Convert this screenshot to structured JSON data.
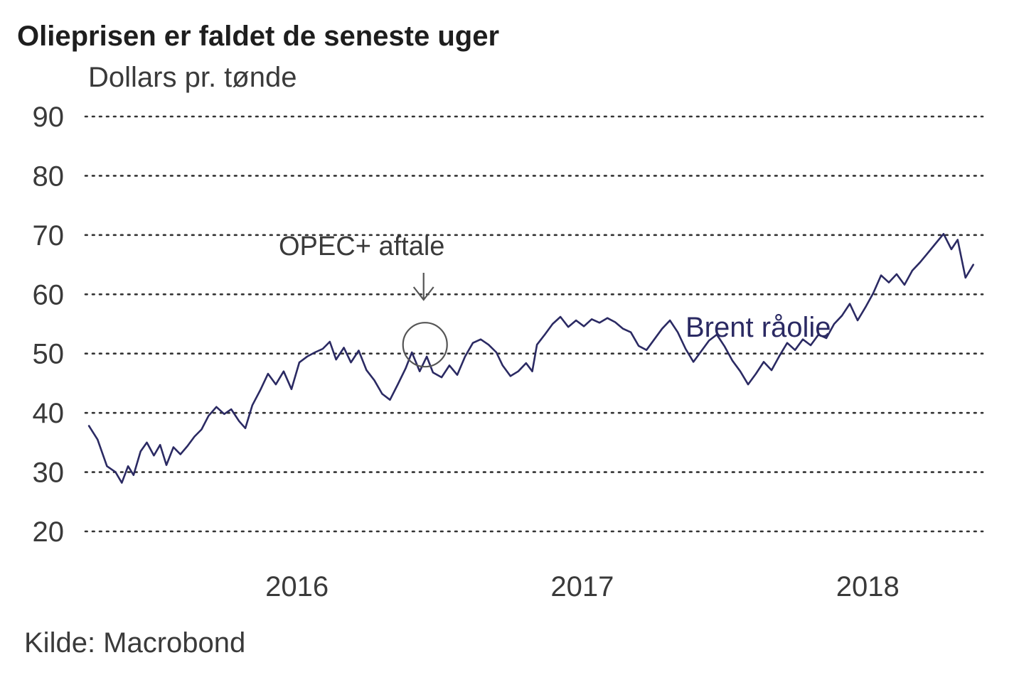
{
  "chart_data": {
    "type": "line",
    "title": "Olieprisen er faldet de seneste uger",
    "ylabel": "Dollars pr. tønde",
    "ylim": [
      20,
      90
    ],
    "yticks": [
      20,
      30,
      40,
      50,
      60,
      70,
      80,
      90
    ],
    "grid": true,
    "xlim": [
      "2015-10-08",
      "2018-11-16"
    ],
    "xticks": [
      {
        "label": "2016",
        "date": "2016-07-01"
      },
      {
        "label": "2017",
        "date": "2017-07-01"
      },
      {
        "label": "2018",
        "date": "2018-07-01"
      }
    ],
    "source": "Kilde: Macrobond",
    "annotations": [
      {
        "text": "OPEC+ aftale",
        "date": "2016-12-10",
        "value": 51.5
      }
    ],
    "series": [
      {
        "name": "Brent råolie",
        "color": "#2b2a63",
        "points": [
          [
            "2015-10-09",
            37.8
          ],
          [
            "2015-10-20",
            35.5
          ],
          [
            "2015-11-01",
            31.0
          ],
          [
            "2015-11-12",
            30.0
          ],
          [
            "2015-11-20",
            28.2
          ],
          [
            "2015-11-28",
            31.0
          ],
          [
            "2015-12-05",
            29.5
          ],
          [
            "2015-12-14",
            33.5
          ],
          [
            "2015-12-22",
            35.0
          ],
          [
            "2015-12-31",
            32.8
          ],
          [
            "2016-01-08",
            34.6
          ],
          [
            "2016-01-16",
            31.2
          ],
          [
            "2016-01-25",
            34.2
          ],
          [
            "2016-02-03",
            33.0
          ],
          [
            "2016-02-12",
            34.4
          ],
          [
            "2016-02-21",
            36.0
          ],
          [
            "2016-03-01",
            37.2
          ],
          [
            "2016-03-10",
            39.5
          ],
          [
            "2016-03-20",
            41.0
          ],
          [
            "2016-03-30",
            39.8
          ],
          [
            "2016-04-08",
            40.6
          ],
          [
            "2016-04-18",
            38.6
          ],
          [
            "2016-04-26",
            37.4
          ],
          [
            "2016-05-05",
            41.3
          ],
          [
            "2016-05-15",
            43.8
          ],
          [
            "2016-05-25",
            46.6
          ],
          [
            "2016-06-04",
            44.8
          ],
          [
            "2016-06-14",
            47.0
          ],
          [
            "2016-06-24",
            44.0
          ],
          [
            "2016-07-04",
            48.5
          ],
          [
            "2016-07-14",
            49.5
          ],
          [
            "2016-07-24",
            50.2
          ],
          [
            "2016-08-03",
            50.8
          ],
          [
            "2016-08-12",
            52.0
          ],
          [
            "2016-08-20",
            49.0
          ],
          [
            "2016-08-30",
            51.0
          ],
          [
            "2016-09-08",
            48.5
          ],
          [
            "2016-09-18",
            50.5
          ],
          [
            "2016-09-28",
            47.2
          ],
          [
            "2016-10-08",
            45.5
          ],
          [
            "2016-10-18",
            43.2
          ],
          [
            "2016-10-28",
            42.2
          ],
          [
            "2016-11-07",
            44.8
          ],
          [
            "2016-11-17",
            47.5
          ],
          [
            "2016-11-25",
            50.2
          ],
          [
            "2016-12-05",
            47.0
          ],
          [
            "2016-12-14",
            49.5
          ],
          [
            "2016-12-22",
            46.8
          ],
          [
            "2017-01-02",
            46.0
          ],
          [
            "2017-01-12",
            48.0
          ],
          [
            "2017-01-22",
            46.4
          ],
          [
            "2017-02-01",
            49.5
          ],
          [
            "2017-02-11",
            51.8
          ],
          [
            "2017-02-21",
            52.4
          ],
          [
            "2017-03-03",
            51.5
          ],
          [
            "2017-03-13",
            50.2
          ],
          [
            "2017-03-21",
            48.0
          ],
          [
            "2017-03-31",
            46.2
          ],
          [
            "2017-04-10",
            47.0
          ],
          [
            "2017-04-20",
            48.4
          ],
          [
            "2017-04-28",
            47.0
          ],
          [
            "2017-05-04",
            51.5
          ],
          [
            "2017-05-14",
            53.2
          ],
          [
            "2017-05-24",
            55.0
          ],
          [
            "2017-06-03",
            56.2
          ],
          [
            "2017-06-13",
            54.5
          ],
          [
            "2017-06-23",
            55.6
          ],
          [
            "2017-07-03",
            54.6
          ],
          [
            "2017-07-13",
            55.8
          ],
          [
            "2017-07-23",
            55.2
          ],
          [
            "2017-08-02",
            56.0
          ],
          [
            "2017-08-12",
            55.3
          ],
          [
            "2017-08-22",
            54.2
          ],
          [
            "2017-09-01",
            53.6
          ],
          [
            "2017-09-11",
            51.3
          ],
          [
            "2017-09-21",
            50.6
          ],
          [
            "2017-10-01",
            52.4
          ],
          [
            "2017-10-11",
            54.2
          ],
          [
            "2017-10-21",
            55.6
          ],
          [
            "2017-10-31",
            53.6
          ],
          [
            "2017-11-10",
            50.8
          ],
          [
            "2017-11-20",
            48.6
          ],
          [
            "2017-11-30",
            50.4
          ],
          [
            "2017-12-10",
            52.2
          ],
          [
            "2017-12-20",
            53.2
          ],
          [
            "2017-12-30",
            51.2
          ],
          [
            "2018-01-09",
            48.8
          ],
          [
            "2018-01-19",
            47.0
          ],
          [
            "2018-01-29",
            44.8
          ],
          [
            "2018-02-08",
            46.6
          ],
          [
            "2018-02-18",
            48.6
          ],
          [
            "2018-02-28",
            47.2
          ],
          [
            "2018-03-10",
            49.6
          ],
          [
            "2018-03-20",
            51.8
          ],
          [
            "2018-03-30",
            50.6
          ],
          [
            "2018-04-09",
            52.4
          ],
          [
            "2018-04-19",
            51.4
          ],
          [
            "2018-04-29",
            53.2
          ],
          [
            "2018-05-09",
            52.6
          ],
          [
            "2018-05-19",
            55.0
          ],
          [
            "2018-05-29",
            56.4
          ],
          [
            "2018-06-08",
            58.4
          ],
          [
            "2018-06-18",
            55.6
          ],
          [
            "2018-06-28",
            57.8
          ],
          [
            "2018-07-08",
            60.2
          ],
          [
            "2018-07-18",
            63.2
          ],
          [
            "2018-07-28",
            62.0
          ],
          [
            "2018-08-07",
            63.4
          ],
          [
            "2018-08-17",
            61.6
          ],
          [
            "2018-08-27",
            64.0
          ],
          [
            "2018-09-06",
            65.4
          ],
          [
            "2018-09-16",
            67.0
          ],
          [
            "2018-09-26",
            68.6
          ],
          [
            "2018-10-06",
            70.2
          ],
          [
            "2018-10-16",
            67.6
          ],
          [
            "2018-10-24",
            69.2
          ],
          [
            "2018-11-03",
            62.8
          ],
          [
            "2018-11-13",
            65.0
          ]
        ]
      }
    ]
  },
  "labels": {
    "title": "Olieprisen er faldet de seneste uger",
    "unit": "Dollars pr. tønde",
    "series_label": "Brent råolie",
    "annotation": "OPEC+ aftale",
    "source": "Kilde: Macrobond"
  },
  "colors": {
    "series": "#2b2a63",
    "text": "#3a3a3a",
    "grid": "#333333",
    "annotation": "#555555"
  }
}
